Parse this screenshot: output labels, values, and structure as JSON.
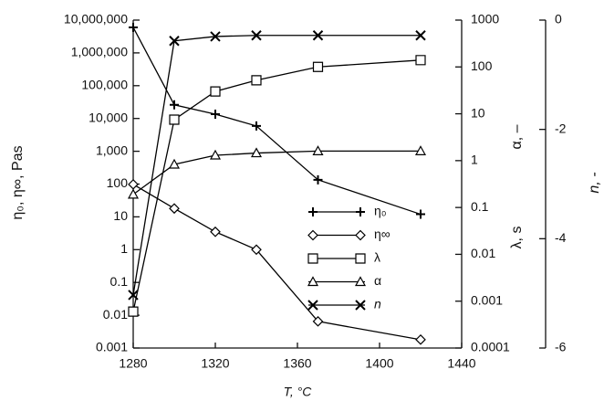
{
  "chart_data": {
    "type": "line",
    "x_label": "T, °C",
    "y_label": "η₀, η∞, Pas",
    "y2_labels": [
      "λ, s",
      "α, –"
    ],
    "y3_label": "n, -",
    "x": [
      1280,
      1300,
      1320,
      1340,
      1370,
      1420
    ],
    "xlim": [
      1280,
      1440
    ],
    "xticks": [
      1280,
      1320,
      1360,
      1400,
      1440
    ],
    "ylog": true,
    "ylim": [
      0.001,
      10000000
    ],
    "yticks": [
      {
        "value": 0.001,
        "label": "0.001"
      },
      {
        "value": 0.01,
        "label": "0.01"
      },
      {
        "value": 0.1,
        "label": "0.1"
      },
      1,
      10,
      100,
      {
        "value": 1000,
        "label": "1,000"
      },
      {
        "value": 10000,
        "label": "10,000"
      },
      {
        "value": 100000,
        "label": "100,000"
      },
      {
        "value": 1000000,
        "label": "1,000,000"
      },
      {
        "value": 10000000,
        "label": "10,000,000"
      }
    ],
    "y2log": true,
    "y2lim": [
      0.0001,
      1000
    ],
    "y2ticks": [
      0.0001,
      0.001,
      0.01,
      0.1,
      1,
      10,
      100,
      1000
    ],
    "y3lim": [
      -6,
      0
    ],
    "y3ticks": [
      -6,
      -4,
      -2,
      0
    ],
    "legend": "center",
    "series": [
      {
        "name": "η₀",
        "color": "#000000",
        "marker": "plus",
        "axis": "y",
        "values": [
          6000000,
          26000,
          13500,
          5900,
          135,
          12
        ]
      },
      {
        "name": "η∞",
        "color": "#000000",
        "marker": "diamond",
        "axis": "y",
        "values": [
          98,
          18,
          3.5,
          1,
          0.0065,
          0.0018
        ]
      },
      {
        "name": "λ",
        "color": "#000000",
        "marker": "square",
        "axis": "y2",
        "values": [
          0.0006,
          7.5,
          30,
          52,
          100,
          140
        ]
      },
      {
        "name": "α",
        "color": "#000000",
        "marker": "triangle",
        "axis": "y2",
        "values": [
          0.19,
          0.83,
          1.3,
          1.45,
          1.6,
          1.6
        ]
      },
      {
        "name": "n",
        "color": "#000000",
        "marker": "x",
        "axis": "y3",
        "values": [
          -5.03,
          -0.38,
          -0.3,
          -0.28,
          -0.28,
          -0.28
        ]
      }
    ]
  }
}
